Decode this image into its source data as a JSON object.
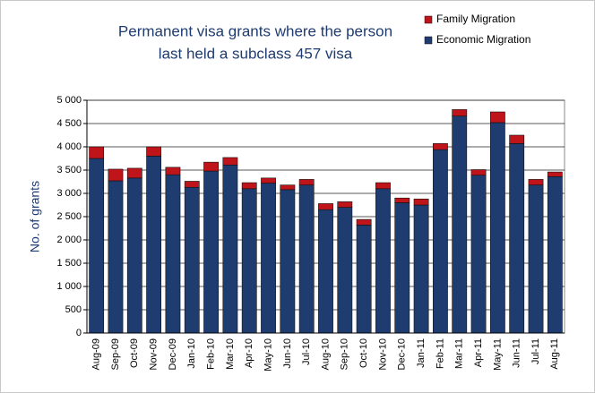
{
  "chart_data": {
    "type": "stacked-bar",
    "title": [
      "Permanent visa grants where the person",
      "last held a subclass 457 visa"
    ],
    "y_label": "No. of grants",
    "categories": [
      "Aug-09",
      "Sep-09",
      "Oct-09",
      "Nov-09",
      "Dec-09",
      "Jan-10",
      "Feb-10",
      "Mar-10",
      "Apr-10",
      "May-10",
      "Jun-10",
      "Jul-10",
      "Aug-10",
      "Sep-10",
      "Oct-10",
      "Nov-10",
      "Dec-10",
      "Jan-11",
      "Feb-11",
      "Mar-11",
      "Apr-11",
      "May-11",
      "Jun-11",
      "Jul-11",
      "Aug-11"
    ],
    "series": [
      {
        "name": "Economic Migration",
        "color": "#1f3c70",
        "values": [
          3750,
          3270,
          3330,
          3800,
          3400,
          3130,
          3480,
          3610,
          3100,
          3220,
          3080,
          3180,
          2650,
          2700,
          2320,
          3100,
          2800,
          2750,
          3940,
          4660,
          3390,
          4520,
          4070,
          3180,
          3360
        ]
      },
      {
        "name": "Family Migration",
        "color": "#c0141b",
        "values": [
          250,
          250,
          210,
          200,
          160,
          130,
          190,
          160,
          130,
          110,
          100,
          120,
          130,
          120,
          120,
          130,
          100,
          130,
          130,
          140,
          120,
          230,
          180,
          120,
          100
        ]
      }
    ],
    "ylim": [
      0,
      5000
    ],
    "yticks": [
      0,
      500,
      {
        "value": 1000,
        "label": "1 000"
      },
      {
        "value": 1500,
        "label": "1 500"
      },
      {
        "value": 2000,
        "label": "2 000"
      },
      {
        "value": 2500,
        "label": "2 500"
      },
      {
        "value": 3000,
        "label": "3 000"
      },
      {
        "value": 3500,
        "label": "3 500"
      },
      {
        "value": 4000,
        "label": "4 000"
      },
      {
        "value": 4500,
        "label": "4 500"
      },
      {
        "value": 5000,
        "label": "5 000"
      }
    ],
    "grid": true,
    "legend": "top-right"
  }
}
